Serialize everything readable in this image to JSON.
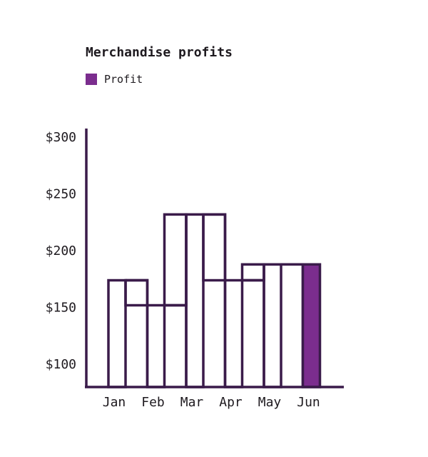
{
  "chart_data": {
    "type": "bar",
    "title": "Merchandise profits",
    "xlabel": "",
    "ylabel": "",
    "categories": [
      "Jan",
      "Feb",
      "Mar",
      "Apr",
      "May",
      "Jun"
    ],
    "series": [
      {
        "name": "Profit",
        "values": [
          174,
          152,
          232,
          174,
          188,
          188
        ]
      }
    ],
    "ylim": [
      80,
      306
    ],
    "yticks": [
      100,
      150,
      200,
      250,
      300
    ],
    "ytick_labels": [
      "$100",
      "$150",
      "$200",
      "$250",
      "$300"
    ],
    "grid": false,
    "legend_position": "top-left",
    "highlighted_category": "Jun",
    "colors": {
      "stroke": "#3a1b4a",
      "highlight_fill": "#7b2d8e",
      "text": "#1e1a1f"
    }
  }
}
